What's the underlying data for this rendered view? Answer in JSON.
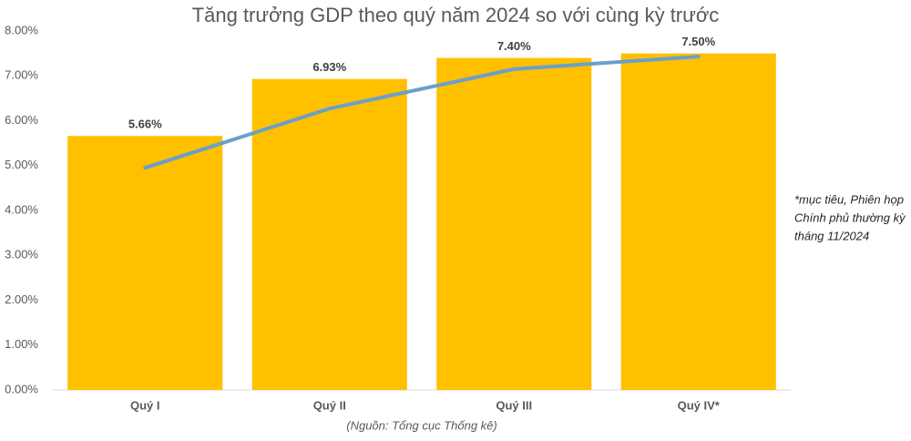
{
  "chart_data": {
    "type": "bar",
    "title": "Tăng trưởng GDP theo quý năm 2024 so với cùng kỳ trước",
    "source": "(Nguồn: Tổng cục Thống kê)",
    "annotation": [
      "*mục tiêu, Phiên họp",
      "Chính phủ thường kỳ",
      "tháng 11/2024"
    ],
    "categories": [
      "Quý I",
      "Quý II",
      "Quý III",
      "Quý IV*"
    ],
    "series": [
      {
        "type": "bar",
        "color": "#ffc000",
        "values": [
          5.66,
          6.93,
          7.4,
          7.5
        ],
        "value_labels": [
          "5.66%",
          "6.93%",
          "7.40%",
          "7.50%"
        ]
      },
      {
        "type": "line",
        "color": "#6a9fcb",
        "values": [
          4.95,
          6.27,
          7.15,
          7.43
        ]
      }
    ],
    "ylim": [
      0,
      8
    ],
    "yticks": [
      {
        "value": 0,
        "label": "0.00%"
      },
      {
        "value": 1,
        "label": "1.00%"
      },
      {
        "value": 2,
        "label": "2.00%"
      },
      {
        "value": 3,
        "label": "3.00%"
      },
      {
        "value": 4,
        "label": "4.00%"
      },
      {
        "value": 5,
        "label": "5.00%"
      },
      {
        "value": 6,
        "label": "6.00%"
      },
      {
        "value": 7,
        "label": "7.00%"
      },
      {
        "value": 8,
        "label": "8.00%"
      }
    ],
    "grid": false
  }
}
